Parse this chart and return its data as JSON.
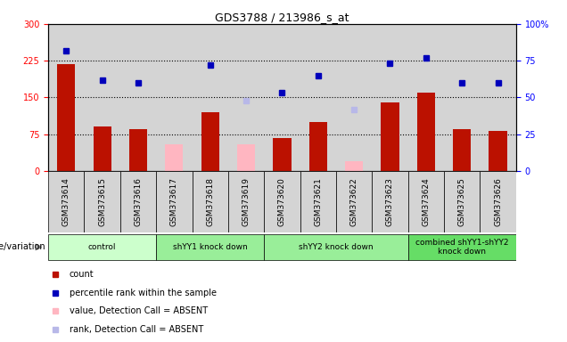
{
  "title": "GDS3788 / 213986_s_at",
  "samples": [
    "GSM373614",
    "GSM373615",
    "GSM373616",
    "GSM373617",
    "GSM373618",
    "GSM373619",
    "GSM373620",
    "GSM373621",
    "GSM373622",
    "GSM373623",
    "GSM373624",
    "GSM373625",
    "GSM373626"
  ],
  "count_values": [
    218,
    90,
    85,
    null,
    120,
    null,
    68,
    100,
    null,
    140,
    160,
    85,
    82
  ],
  "percentile_values": [
    82,
    62,
    60,
    null,
    72,
    null,
    53,
    65,
    null,
    73,
    77,
    60,
    60
  ],
  "absent_count_values": [
    null,
    null,
    null,
    55,
    null,
    55,
    null,
    null,
    20,
    null,
    null,
    null,
    null
  ],
  "absent_rank_values": [
    null,
    null,
    null,
    null,
    null,
    48,
    null,
    null,
    42,
    null,
    null,
    null,
    null
  ],
  "groups": [
    {
      "label": "control",
      "start": 0,
      "end": 2,
      "color": "#ccffcc"
    },
    {
      "label": "shYY1 knock down",
      "start": 3,
      "end": 5,
      "color": "#99ee99"
    },
    {
      "label": "shYY2 knock down",
      "start": 6,
      "end": 9,
      "color": "#99ee99"
    },
    {
      "label": "combined shYY1-shYY2\nknock down",
      "start": 10,
      "end": 12,
      "color": "#66dd66"
    }
  ],
  "ylim_left": [
    0,
    300
  ],
  "ylim_right": [
    0,
    100
  ],
  "yticks_left": [
    0,
    75,
    150,
    225,
    300
  ],
  "yticks_right": [
    0,
    25,
    50,
    75,
    100
  ],
  "bar_color": "#bb1100",
  "dot_color": "#0000bb",
  "absent_bar_color": "#ffb6c1",
  "absent_dot_color": "#b8b8e8",
  "cell_bg_color": "#d4d4d4",
  "plot_bg_color": "#ffffff",
  "legend_items": [
    {
      "color": "#bb1100",
      "label": "count"
    },
    {
      "color": "#0000bb",
      "label": "percentile rank within the sample"
    },
    {
      "color": "#ffb6c1",
      "label": "value, Detection Call = ABSENT"
    },
    {
      "color": "#b8b8e8",
      "label": "rank, Detection Call = ABSENT"
    }
  ]
}
